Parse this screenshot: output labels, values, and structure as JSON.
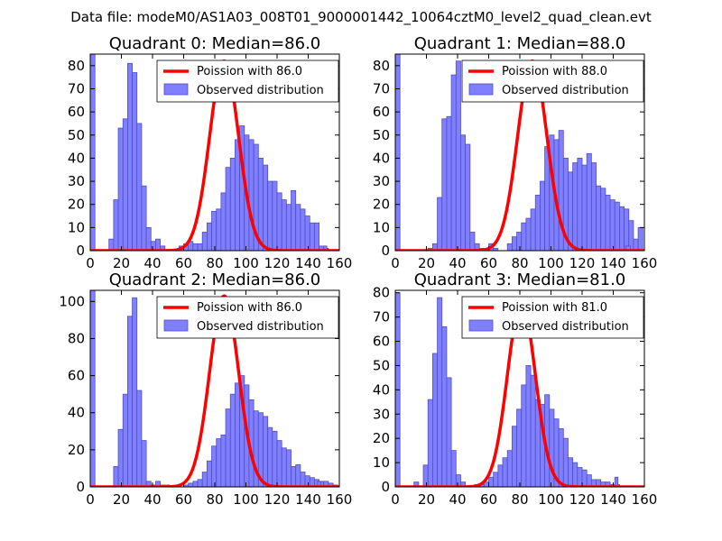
{
  "figure": {
    "suptitle": "Data file: modeM0/AS1A03_008T01_9000001442_10064cztM0_level2_quad_clean.evt"
  },
  "colors": {
    "bar_fill": "#8080ff",
    "bar_stroke": "#4d4dcc",
    "curve": "#ff0000",
    "frame": "#000000"
  },
  "chart_data": [
    {
      "type": "bar",
      "title": "Quadrant 0: Median=86.0",
      "median": 86.0,
      "xlim": [
        0,
        160
      ],
      "ylim": [
        0,
        85
      ],
      "xticks": [
        0,
        20,
        40,
        60,
        80,
        100,
        120,
        140,
        160
      ],
      "yticks": [
        0,
        10,
        20,
        30,
        40,
        50,
        60,
        70,
        80
      ],
      "legend": {
        "placement": "top-right",
        "line_label": "Poission with 86.0",
        "bar_label": "Observed distribution"
      },
      "bins": {
        "start": 0,
        "width": 3,
        "counts": [
          85,
          0,
          0,
          0,
          5,
          22,
          53,
          57,
          81,
          77,
          55,
          28,
          10,
          4,
          5,
          2,
          0,
          0,
          0,
          2,
          3,
          4,
          3,
          3,
          8,
          12,
          17,
          18,
          25,
          36,
          40,
          48,
          54,
          50,
          48,
          46,
          40,
          37,
          30,
          30,
          25,
          22,
          20,
          26,
          20,
          18,
          15,
          12,
          12,
          2,
          1,
          0,
          0,
          0
        ],
        "extra": [
          {
            "x": 150,
            "w": 2,
            "count": 2
          }
        ]
      },
      "poisson": {
        "mean": 86.0,
        "peak": 82
      }
    },
    {
      "type": "bar",
      "title": "Quadrant 1: Median=88.0",
      "median": 88.0,
      "xlim": [
        0,
        160
      ],
      "ylim": [
        0,
        85
      ],
      "xticks": [
        0,
        20,
        40,
        60,
        80,
        100,
        120,
        140,
        160
      ],
      "yticks": [
        0,
        10,
        20,
        30,
        40,
        50,
        60,
        70,
        80
      ],
      "legend": {
        "placement": "top-right",
        "line_label": "Poission with 88.0",
        "bar_label": "Observed distribution"
      },
      "bins": {
        "start": 0,
        "width": 3,
        "counts": [
          85,
          0,
          0,
          0,
          0,
          0,
          0,
          1,
          3,
          23,
          57,
          58,
          76,
          82,
          50,
          46,
          8,
          3,
          1,
          0,
          3,
          1,
          0,
          0,
          3,
          6,
          8,
          12,
          14,
          18,
          24,
          30,
          45,
          50,
          48,
          52,
          40,
          34,
          38,
          40,
          37,
          42,
          38,
          28,
          27,
          24,
          22,
          21,
          19,
          18,
          13,
          5,
          10,
          0
        ],
        "extra": [
          {
            "x": 148,
            "w": 3,
            "count": 2
          }
        ]
      },
      "poisson": {
        "mean": 88.0,
        "peak": 82
      }
    },
    {
      "type": "bar",
      "title": "Quadrant 2: Median=86.0",
      "median": 86.0,
      "xlim": [
        0,
        160
      ],
      "ylim": [
        0,
        106
      ],
      "xticks": [
        0,
        20,
        40,
        60,
        80,
        100,
        120,
        140,
        160
      ],
      "yticks": [
        0,
        20,
        40,
        60,
        80,
        100
      ],
      "legend": {
        "placement": "top-right",
        "line_label": "Poission with 86.0",
        "bar_label": "Observed distribution"
      },
      "bins": {
        "start": 0,
        "width": 3,
        "counts": [
          106,
          0,
          0,
          0,
          0,
          11,
          31,
          50,
          92,
          102,
          52,
          25,
          3,
          1,
          3,
          1,
          1,
          0,
          1,
          0,
          1,
          2,
          3,
          4,
          8,
          14,
          22,
          26,
          28,
          42,
          50,
          56,
          60,
          55,
          47,
          41,
          40,
          38,
          32,
          30,
          25,
          21,
          20,
          11,
          12,
          8,
          6,
          5,
          4,
          3,
          3,
          2,
          1,
          0
        ],
        "extra": [
          {
            "x": 146,
            "w": 2,
            "count": 3
          }
        ]
      },
      "poisson": {
        "mean": 86.0,
        "peak": 103
      }
    },
    {
      "type": "bar",
      "title": "Quadrant 3: Median=81.0",
      "median": 81.0,
      "xlim": [
        0,
        160
      ],
      "ylim": [
        0,
        81
      ],
      "xticks": [
        0,
        20,
        40,
        60,
        80,
        100,
        120,
        140,
        160
      ],
      "yticks": [
        0,
        10,
        20,
        30,
        40,
        50,
        60,
        70,
        80
      ],
      "legend": {
        "placement": "top-right",
        "line_label": "Poission with 81.0",
        "bar_label": "Observed distribution"
      },
      "bins": {
        "start": 0,
        "width": 3,
        "counts": [
          80,
          0,
          0,
          0,
          2,
          0,
          9,
          36,
          55,
          78,
          66,
          45,
          15,
          5,
          2,
          0,
          0,
          1,
          1,
          2,
          4,
          6,
          9,
          12,
          15,
          25,
          32,
          42,
          50,
          46,
          36,
          34,
          38,
          32,
          28,
          24,
          20,
          12,
          10,
          8,
          7,
          5,
          3,
          3,
          2,
          2,
          1,
          1,
          0,
          0,
          0,
          0,
          0,
          0
        ],
        "extra": [
          {
            "x": 141,
            "w": 2,
            "count": 4
          }
        ]
      },
      "poisson": {
        "mean": 81.0,
        "peak": 76
      }
    }
  ]
}
